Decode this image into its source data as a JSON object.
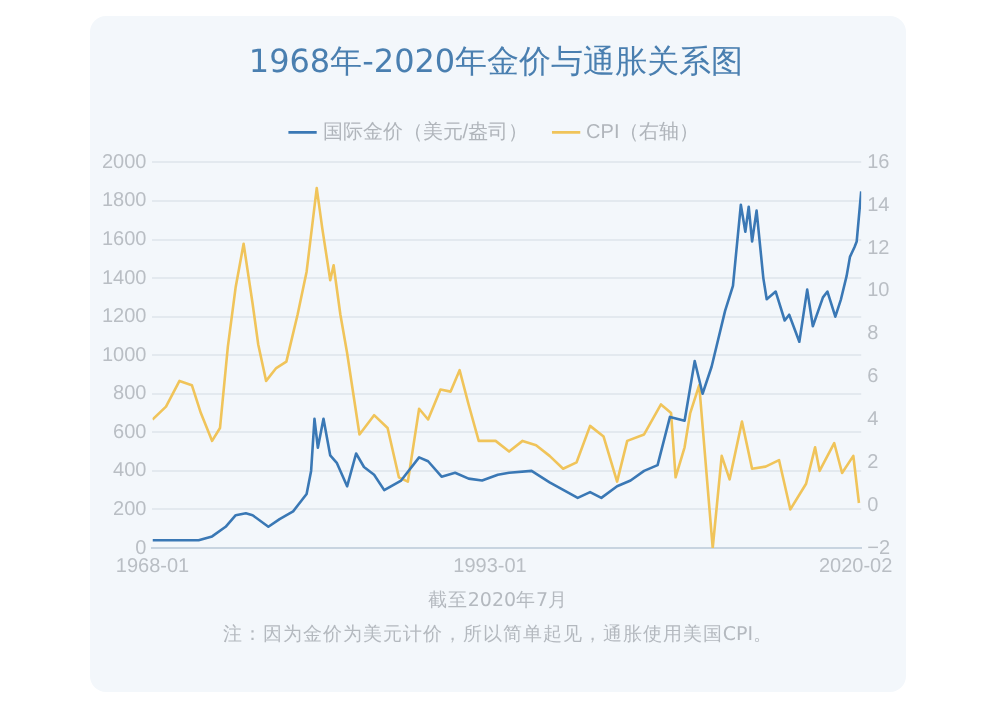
{
  "chart_data": {
    "type": "line",
    "title": "1968年-2020年金价与通胀关系图",
    "legend": "top",
    "grid": "y",
    "marker": "none",
    "line_style": "solid",
    "xlim": [
      "1968-01",
      "2020-07"
    ],
    "xticks": [
      "1968-01",
      "1993-01",
      "2020-02"
    ],
    "ylim": [
      0,
      2000
    ],
    "yticks": [
      0,
      200,
      400,
      600,
      800,
      1000,
      1200,
      1400,
      1600,
      1800,
      2000
    ],
    "y2lim": [
      -2,
      16
    ],
    "y2ticks": [
      -2,
      0,
      2,
      4,
      6,
      8,
      10,
      12,
      14,
      16
    ],
    "annotations": [
      "截至2020年7月",
      "注：因为金价为美元计价，所以简单起见，通胀使用美国CPI。"
    ],
    "series": [
      {
        "name": "国际金价（美元/盎司）",
        "color": "#3a78b5",
        "x": [
          "1968-01",
          "1969-06",
          "1970-06",
          "1971-06",
          "1972-06",
          "1973-06",
          "1974-03",
          "1974-12",
          "1975-06",
          "1976-08",
          "1977-06",
          "1978-06",
          "1979-06",
          "1979-10",
          "1980-01",
          "1980-04",
          "1980-09",
          "1981-03",
          "1981-09",
          "1982-06",
          "1983-02",
          "1983-09",
          "1984-06",
          "1985-03",
          "1986-06",
          "1987-10",
          "1988-06",
          "1989-06",
          "1990-06",
          "1991-06",
          "1992-06",
          "1993-08",
          "1994-06",
          "1996-02",
          "1997-06",
          "1999-07",
          "2000-06",
          "2001-04",
          "2002-06",
          "2003-06",
          "2004-06",
          "2005-06",
          "2006-05",
          "2007-06",
          "2008-03",
          "2008-10",
          "2009-06",
          "2010-06",
          "2011-01",
          "2011-08",
          "2011-12",
          "2012-03",
          "2012-06",
          "2012-10",
          "2013-04",
          "2013-07",
          "2014-03",
          "2014-11",
          "2015-03",
          "2015-12",
          "2016-07",
          "2016-12",
          "2017-09",
          "2018-01",
          "2018-08",
          "2019-01",
          "2019-06",
          "2019-09",
          "2020-01",
          "2020-03",
          "2020-05",
          "2020-07"
        ],
        "values": [
          40,
          40,
          40,
          40,
          60,
          110,
          170,
          180,
          170,
          110,
          150,
          190,
          280,
          400,
          670,
          520,
          670,
          480,
          440,
          320,
          490,
          420,
          380,
          300,
          350,
          470,
          450,
          370,
          390,
          360,
          350,
          380,
          390,
          400,
          340,
          260,
          290,
          260,
          320,
          350,
          400,
          430,
          680,
          660,
          970,
          800,
          940,
          1230,
          1360,
          1780,
          1640,
          1770,
          1590,
          1750,
          1400,
          1290,
          1330,
          1180,
          1210,
          1070,
          1340,
          1150,
          1300,
          1330,
          1200,
          1290,
          1410,
          1510,
          1560,
          1590,
          1720,
          1850
        ]
      },
      {
        "name": "CPI（右轴）",
        "color": "#f0c45a",
        "axis": "y2",
        "x": [
          "1968-01",
          "1969-01",
          "1970-01",
          "1970-12",
          "1971-08",
          "1972-06",
          "1973-01",
          "1973-08",
          "1974-03",
          "1974-10",
          "1975-06",
          "1975-11",
          "1976-06",
          "1977-03",
          "1977-12",
          "1978-10",
          "1979-06",
          "1980-03",
          "1980-08",
          "1981-03",
          "1981-06",
          "1981-12",
          "1982-06",
          "1983-05",
          "1984-06",
          "1985-06",
          "1986-04",
          "1986-12",
          "1987-10",
          "1988-06",
          "1989-05",
          "1990-02",
          "1990-10",
          "1991-06",
          "1992-03",
          "1993-06",
          "1994-06",
          "1995-06",
          "1996-06",
          "1997-06",
          "1998-06",
          "1999-06",
          "2000-06",
          "2001-06",
          "2002-06",
          "2003-03",
          "2004-06",
          "2005-09",
          "2006-06",
          "2006-10",
          "2007-06",
          "2007-11",
          "2008-07",
          "2009-07",
          "2010-03",
          "2010-10",
          "2011-09",
          "2012-06",
          "2013-06",
          "2014-06",
          "2015-04",
          "2016-06",
          "2017-02",
          "2017-06",
          "2018-07",
          "2019-02",
          "2019-12",
          "2020-05"
        ],
        "values": [
          4.0,
          4.6,
          5.8,
          5.6,
          4.3,
          3.0,
          3.6,
          7.4,
          10.2,
          12.2,
          9.4,
          7.5,
          5.8,
          6.4,
          6.7,
          8.9,
          10.9,
          14.8,
          12.9,
          10.5,
          11.2,
          8.9,
          7.1,
          3.3,
          4.2,
          3.6,
          1.3,
          1.1,
          4.5,
          4.0,
          5.4,
          5.3,
          6.3,
          4.7,
          3.0,
          3.0,
          2.5,
          3.0,
          2.8,
          2.3,
          1.7,
          2.0,
          3.7,
          3.2,
          1.1,
          3.0,
          3.3,
          4.7,
          4.3,
          1.3,
          2.7,
          4.3,
          5.6,
          -2.0,
          2.3,
          1.2,
          3.9,
          1.7,
          1.8,
          2.1,
          -0.2,
          1.0,
          2.7,
          1.6,
          2.9,
          1.5,
          2.3,
          0.1
        ]
      }
    ]
  }
}
